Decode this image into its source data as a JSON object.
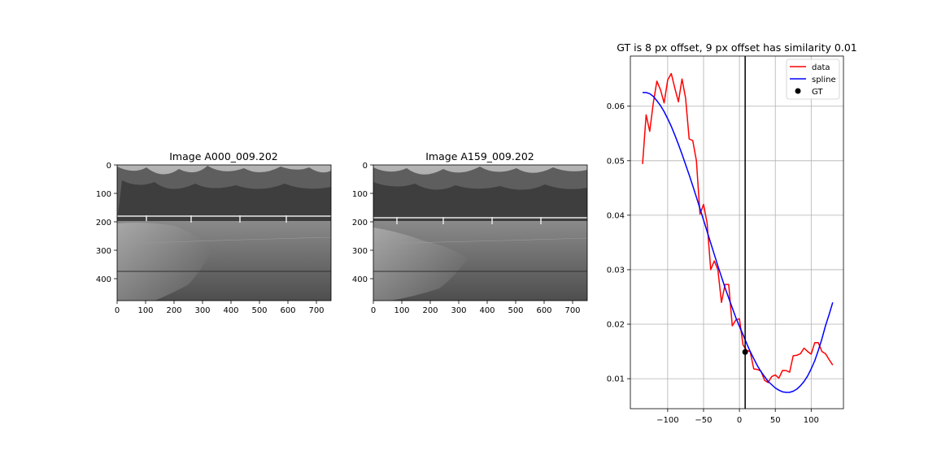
{
  "images": [
    {
      "title": "Image A000_009.202",
      "x_ticks": [
        "0",
        "100",
        "200",
        "300",
        "400",
        "500",
        "600",
        "700"
      ],
      "y_ticks": [
        "0",
        "100",
        "200",
        "300",
        "400"
      ],
      "x_range": [
        0,
        752
      ],
      "y_range": [
        0,
        480
      ],
      "content": "grayscale outdoor photo: tree line, white fence, grassy field and gravel"
    },
    {
      "title": "Image A159_009.202",
      "x_ticks": [
        "0",
        "100",
        "200",
        "300",
        "400",
        "500",
        "600",
        "700"
      ],
      "y_ticks": [
        "0",
        "100",
        "200",
        "300",
        "400"
      ],
      "x_range": [
        0,
        752
      ],
      "y_range": [
        0,
        480
      ],
      "content": "grayscale outdoor photo: tree line, white fence, grassy field and gravel"
    }
  ],
  "chart_data": {
    "type": "line",
    "title": "GT is 8 px offset, 9 px offset has similarity 0.01",
    "xlabel": "",
    "ylabel": "",
    "xlim": [
      -152,
      145
    ],
    "ylim": [
      0.0045,
      0.0692
    ],
    "x_ticks": [
      "−100",
      "−50",
      "0",
      "50",
      "100"
    ],
    "x_tick_values": [
      -100,
      -50,
      0,
      50,
      100
    ],
    "y_ticks": [
      "0.01",
      "0.02",
      "0.03",
      "0.04",
      "0.05",
      "0.06"
    ],
    "y_tick_values": [
      0.01,
      0.02,
      0.03,
      0.04,
      0.05,
      0.06
    ],
    "grid": true,
    "legend": {
      "placement": "top-right",
      "labels": [
        "data",
        "spline",
        "GT"
      ]
    },
    "vline_x": 8,
    "series": [
      {
        "name": "data",
        "color": "#ff0000",
        "x": [
          -135,
          -130,
          -125,
          -120,
          -115,
          -110,
          -105,
          -100,
          -95,
          -90,
          -85,
          -80,
          -75,
          -70,
          -65,
          -60,
          -55,
          -50,
          -45,
          -40,
          -35,
          -30,
          -25,
          -20,
          -15,
          -10,
          -5,
          0,
          5,
          10,
          15,
          20,
          25,
          30,
          35,
          40,
          45,
          50,
          55,
          60,
          65,
          70,
          75,
          80,
          85,
          90,
          95,
          100,
          105,
          110,
          115,
          120,
          125,
          130
        ],
        "y": [
          0.0494,
          0.0584,
          0.0554,
          0.0606,
          0.0646,
          0.063,
          0.0606,
          0.0648,
          0.066,
          0.0633,
          0.0608,
          0.065,
          0.0615,
          0.054,
          0.0537,
          0.05,
          0.0402,
          0.042,
          0.0385,
          0.03,
          0.0316,
          0.03,
          0.024,
          0.0273,
          0.0273,
          0.0197,
          0.0208,
          0.021,
          0.0162,
          0.0152,
          0.015,
          0.0118,
          0.0117,
          0.0114,
          0.0097,
          0.0093,
          0.0104,
          0.0107,
          0.0101,
          0.0115,
          0.0115,
          0.0112,
          0.0142,
          0.0143,
          0.0146,
          0.0156,
          0.015,
          0.0145,
          0.0166,
          0.0166,
          0.015,
          0.0146,
          0.0135,
          0.0125
        ]
      },
      {
        "name": "spline",
        "color": "#0000ff",
        "x": [
          -135,
          -130,
          -125,
          -120,
          -115,
          -110,
          -105,
          -100,
          -95,
          -90,
          -85,
          -80,
          -75,
          -70,
          -65,
          -60,
          -55,
          -50,
          -45,
          -40,
          -35,
          -30,
          -25,
          -20,
          -15,
          -10,
          -5,
          0,
          5,
          10,
          15,
          20,
          25,
          30,
          35,
          40,
          45,
          50,
          55,
          60,
          65,
          70,
          75,
          80,
          85,
          90,
          95,
          100,
          105,
          110,
          115,
          120,
          125,
          130
        ],
        "y": [
          0.0625,
          0.0625,
          0.0623,
          0.0618,
          0.061,
          0.0601,
          0.059,
          0.0577,
          0.0563,
          0.0547,
          0.053,
          0.0512,
          0.0493,
          0.0474,
          0.0454,
          0.0433,
          0.0412,
          0.0391,
          0.037,
          0.0349,
          0.0328,
          0.0307,
          0.0287,
          0.0267,
          0.0248,
          0.023,
          0.0212,
          0.0196,
          0.0181,
          0.0165,
          0.015,
          0.0137,
          0.0124,
          0.0113,
          0.0104,
          0.0095,
          0.0089,
          0.0083,
          0.0079,
          0.0076,
          0.0075,
          0.0075,
          0.0077,
          0.0081,
          0.0087,
          0.0095,
          0.0105,
          0.0118,
          0.0133,
          0.0152,
          0.0173,
          0.0197,
          0.0218,
          0.024
        ]
      }
    ],
    "gt_point": {
      "name": "GT",
      "x": 8,
      "y": 0.0149,
      "color": "#000000"
    }
  }
}
